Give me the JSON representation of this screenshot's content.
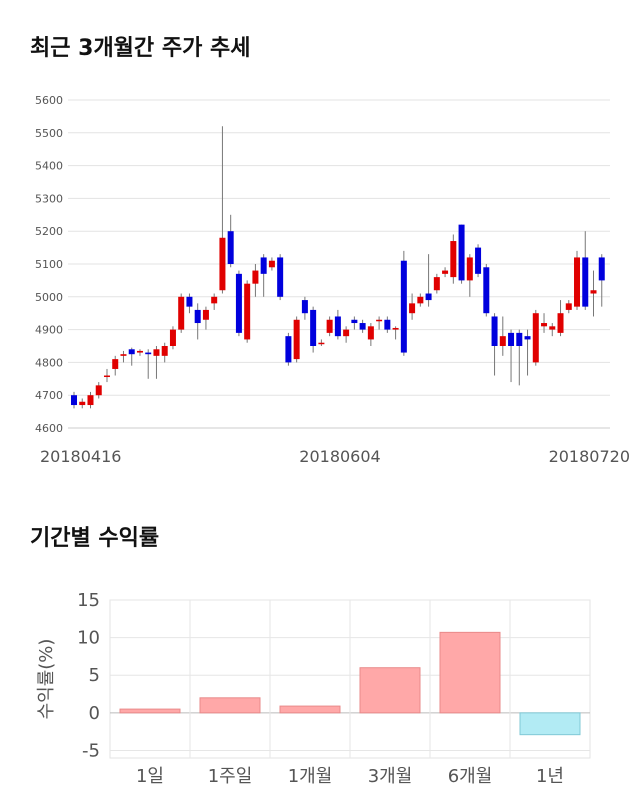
{
  "sections": {
    "price_title": "최근 3개월간 주가 추세",
    "return_title": "기간별 수익률"
  },
  "chart_data": [
    {
      "type": "candlestick",
      "ylim": [
        4600,
        5600
      ],
      "y_ticks": [
        "4600",
        "4700",
        "4800",
        "4900",
        "5000",
        "5100",
        "5200",
        "5300",
        "5400",
        "5500",
        "5600"
      ],
      "x_tick_labels": [
        "20180416",
        "20180604",
        "20180720"
      ],
      "grid": true,
      "colors": {
        "up": "#e00000",
        "down": "#0000dd",
        "wick": "#777777"
      },
      "candles": [
        [
          4700,
          4670,
          4710,
          4660
        ],
        [
          4670,
          4680,
          4690,
          4660
        ],
        [
          4670,
          4700,
          4710,
          4660
        ],
        [
          4700,
          4730,
          4740,
          4690
        ],
        [
          4760,
          4760,
          4780,
          4740
        ],
        [
          4780,
          4810,
          4820,
          4760
        ],
        [
          4820,
          4825,
          4835,
          4800
        ],
        [
          4840,
          4825,
          4845,
          4790
        ],
        [
          4830,
          4835,
          4840,
          4820
        ],
        [
          4830,
          4825,
          4840,
          4750
        ],
        [
          4820,
          4840,
          4850,
          4750
        ],
        [
          4820,
          4850,
          4860,
          4800
        ],
        [
          4850,
          4900,
          4910,
          4840
        ],
        [
          4900,
          5000,
          5010,
          4890
        ],
        [
          5000,
          4970,
          5010,
          4950
        ],
        [
          4960,
          4920,
          4980,
          4870
        ],
        [
          4930,
          4960,
          4970,
          4900
        ],
        [
          4980,
          5000,
          5010,
          4960
        ],
        [
          5020,
          5180,
          5520,
          5010
        ],
        [
          5200,
          5100,
          5250,
          5090
        ],
        [
          5070,
          4890,
          5080,
          4880
        ],
        [
          4870,
          5040,
          5050,
          4860
        ],
        [
          5040,
          5080,
          5100,
          5000
        ],
        [
          5120,
          5070,
          5130,
          5000
        ],
        [
          5090,
          5110,
          5120,
          5080
        ],
        [
          5120,
          5000,
          5130,
          4990
        ],
        [
          4880,
          4800,
          4890,
          4790
        ],
        [
          4810,
          4930,
          4940,
          4800
        ],
        [
          4990,
          4950,
          5000,
          4930
        ],
        [
          4960,
          4850,
          4970,
          4830
        ],
        [
          4860,
          4860,
          4870,
          4850
        ],
        [
          4890,
          4930,
          4940,
          4880
        ],
        [
          4940,
          4880,
          4960,
          4870
        ],
        [
          4880,
          4900,
          4910,
          4860
        ],
        [
          4930,
          4920,
          4940,
          4900
        ],
        [
          4920,
          4900,
          4930,
          4890
        ],
        [
          4870,
          4910,
          4920,
          4850
        ],
        [
          4930,
          4930,
          4940,
          4900
        ],
        [
          4930,
          4900,
          4940,
          4890
        ],
        [
          4900,
          4905,
          4910,
          4870
        ],
        [
          5110,
          4830,
          5140,
          4820
        ],
        [
          4950,
          4980,
          5010,
          4930
        ],
        [
          4980,
          5000,
          5010,
          4970
        ],
        [
          5010,
          4990,
          5130,
          4970
        ],
        [
          5020,
          5060,
          5070,
          5010
        ],
        [
          5070,
          5080,
          5090,
          5060
        ],
        [
          5060,
          5170,
          5190,
          5040
        ],
        [
          5220,
          5050,
          5220,
          5040
        ],
        [
          5050,
          5120,
          5130,
          5000
        ],
        [
          5150,
          5070,
          5160,
          5060
        ],
        [
          5090,
          4950,
          5100,
          4940
        ],
        [
          4940,
          4850,
          4950,
          4760
        ],
        [
          4850,
          4880,
          4940,
          4820
        ],
        [
          4890,
          4850,
          4900,
          4740
        ],
        [
          4890,
          4850,
          4900,
          4730
        ],
        [
          4880,
          4870,
          4900,
          4760
        ],
        [
          4800,
          4950,
          4960,
          4790
        ],
        [
          4910,
          4920,
          4950,
          4890
        ],
        [
          4900,
          4910,
          4920,
          4880
        ],
        [
          4890,
          4950,
          4990,
          4880
        ],
        [
          4960,
          4980,
          4990,
          4950
        ],
        [
          4970,
          5120,
          5140,
          4960
        ],
        [
          5120,
          4970,
          5200,
          4960
        ],
        [
          5010,
          5020,
          5080,
          4940
        ],
        [
          5120,
          5050,
          5130,
          4970
        ]
      ]
    },
    {
      "type": "bar",
      "categories": [
        "1일",
        "1주일",
        "1개월",
        "3개월",
        "6개월",
        "1년"
      ],
      "values": [
        0.5,
        2.0,
        0.9,
        6.0,
        10.7,
        -2.9
      ],
      "ylabel": "수익률(%)",
      "ylim": [
        -6,
        15
      ],
      "y_ticks": [
        15,
        10,
        5,
        0,
        -5
      ],
      "colors": {
        "positive": "#ffa8a8",
        "positive_border": "#e88a8a",
        "negative": "#b2ebf4",
        "negative_border": "#80c8d6"
      }
    }
  ]
}
